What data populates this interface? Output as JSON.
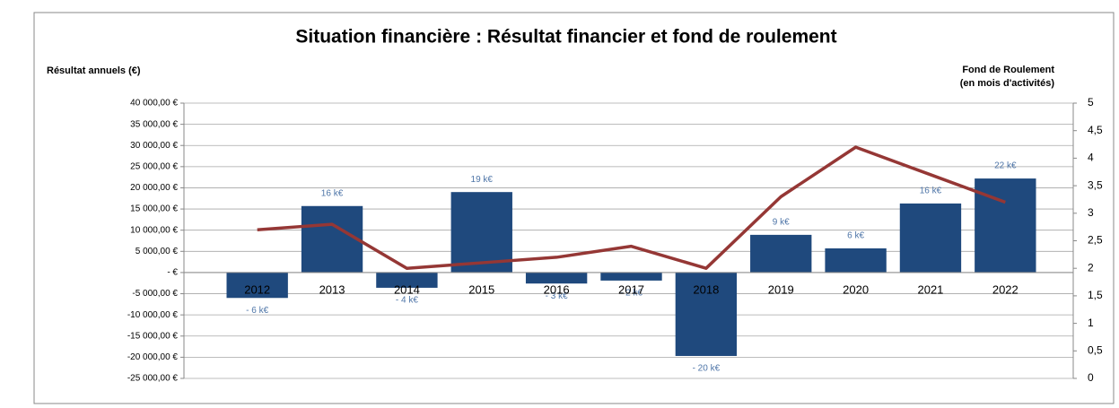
{
  "chart_data": {
    "type": "bar_line",
    "title": "Situation financière : Résultat financier et fond de roulement",
    "y_label": "Résultat annuels (€)",
    "y2_label": [
      "Fond de Roulement",
      "(en mois d'activités)"
    ],
    "categories": [
      "2012",
      "2013",
      "2014",
      "2015",
      "2016",
      "2017",
      "2018",
      "2019",
      "2020",
      "2021",
      "2022"
    ],
    "series": [
      {
        "name": "Résultat annuels (€)",
        "type": "bar",
        "color": "#1f497d",
        "values": [
          -6000,
          15700,
          -3600,
          19000,
          -2600,
          -1900,
          -19700,
          8900,
          5700,
          16300,
          22200
        ],
        "value_labels": [
          "- 6 k€",
          "16 k€",
          "- 4 k€",
          "19 k€",
          "- 3 k€",
          "- 2 k€",
          "- 20 k€",
          "9 k€",
          "6 k€",
          "16 k€",
          "22 k€"
        ]
      },
      {
        "name": "Fond de Roulement",
        "type": "line",
        "axis": "y2",
        "color": "#953735",
        "values": [
          2.7,
          2.8,
          2.0,
          2.1,
          2.2,
          2.4,
          2.0,
          3.3,
          4.2,
          3.7,
          3.2
        ]
      }
    ],
    "ylim": [
      -25000,
      40000
    ],
    "yticks": [
      {
        "value": -25000,
        "label": "-25 000,00 €"
      },
      {
        "value": -20000,
        "label": "-20 000,00 €"
      },
      {
        "value": -15000,
        "label": "-15 000,00 €"
      },
      {
        "value": -10000,
        "label": "-10 000,00 €"
      },
      {
        "value": -5000,
        "label": "-5 000,00 €"
      },
      {
        "value": 0,
        "label": "- €"
      },
      {
        "value": 5000,
        "label": "5 000,00 €"
      },
      {
        "value": 10000,
        "label": "10 000,00 €"
      },
      {
        "value": 15000,
        "label": "15 000,00 €"
      },
      {
        "value": 20000,
        "label": "20 000,00 €"
      },
      {
        "value": 25000,
        "label": "25 000,00 €"
      },
      {
        "value": 30000,
        "label": "30 000,00 €"
      },
      {
        "value": 35000,
        "label": "35 000,00 €"
      },
      {
        "value": 40000,
        "label": "40 000,00 €"
      }
    ],
    "y2lim": [
      0,
      5
    ],
    "y2ticks": [
      0,
      {
        "value": 0.5,
        "label": "0,5"
      },
      1,
      {
        "value": 1.5,
        "label": "1,5"
      },
      2,
      {
        "value": 2.5,
        "label": "2,5"
      },
      3,
      {
        "value": 3.5,
        "label": "3,5"
      },
      4,
      {
        "value": 4.5,
        "label": "4,5"
      },
      5
    ],
    "grid": true
  }
}
